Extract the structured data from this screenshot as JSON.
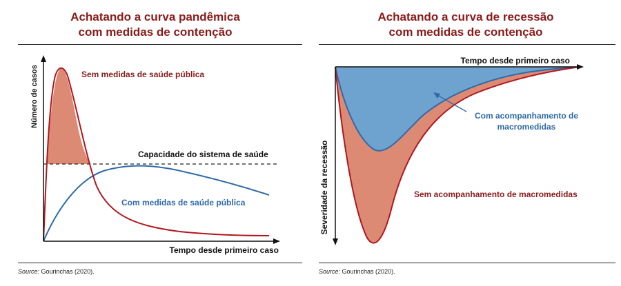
{
  "left": {
    "title_line1": "Achatando a curva pandêmica",
    "title_line2": "com medidas de contenção",
    "y_axis_label": "Número de casos",
    "x_axis_label": "Tempo desde primeiro caso",
    "no_measures_label": "Sem medidas de saúde pública",
    "capacity_label": "Capacidade do sistema de saúde",
    "with_measures_label": "Com medidas de saúde pública",
    "source_prefix": "Source:",
    "source_text": " Gourinchas (2020)."
  },
  "right": {
    "title_line1": "Achatando a curva de recessão",
    "title_line2": "com medidas de contenção",
    "y_axis_label": "Severidade da recessão",
    "x_axis_label": "Tempo desde primeiro caso",
    "with_macro_line1": "Com acompanhamento de",
    "with_macro_line2": "macromedidas",
    "without_macro_label": "Sem acompanhamento de macromedidas",
    "source_prefix": "Source:",
    "source_text": " Gourinchas (2020)."
  },
  "colors": {
    "title": "#8b1a1a",
    "red_curve": "#b0171f",
    "red_fill": "#dd8a74",
    "blue_curve": "#2e6aa8",
    "blue_fill": "#6fa3cf",
    "axis": "#111111"
  }
}
